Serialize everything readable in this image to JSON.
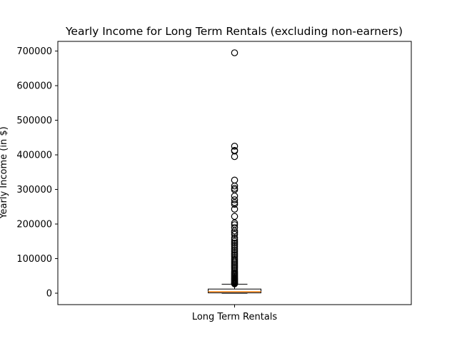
{
  "chart_data": {
    "type": "box",
    "title": "Yearly Income for Long Term Rentals (excluding non-earners)",
    "xlabel": "",
    "ylabel": "Yearly Income (in $)",
    "categories": [
      "Long Term Rentals"
    ],
    "ylim": [
      -33000,
      728000
    ],
    "yticks": [
      0,
      100000,
      200000,
      300000,
      400000,
      500000,
      600000,
      700000
    ],
    "ytick_labels": [
      "0",
      "100000",
      "200000",
      "300000",
      "400000",
      "500000",
      "600000",
      "700000"
    ],
    "grid": false,
    "colors": {
      "median": "#ff7f0e",
      "box": "#000000",
      "flier": "#000000"
    },
    "box": {
      "whisker_low": 0,
      "q1": 1000,
      "median": 4500,
      "q3": 12000,
      "whisker_high": 26000
    },
    "outliers": [
      695000,
      425000,
      413000,
      411000,
      395000,
      327000,
      310000,
      303000,
      299000,
      281000,
      270000,
      262000,
      257000,
      243000,
      222000,
      203000,
      198000,
      190000,
      180000,
      175000,
      170000,
      160000,
      155000,
      150000,
      145000,
      140000,
      135000,
      130000,
      125000,
      120000,
      115000,
      110000,
      105000,
      100000,
      96000,
      92000,
      88000,
      84000,
      80000,
      76000,
      72000,
      68000,
      64000,
      60000,
      57000,
      54000,
      51000,
      48000,
      45000,
      42000,
      40000,
      38000,
      36000,
      34000,
      32000,
      30000,
      28500,
      27000
    ]
  }
}
